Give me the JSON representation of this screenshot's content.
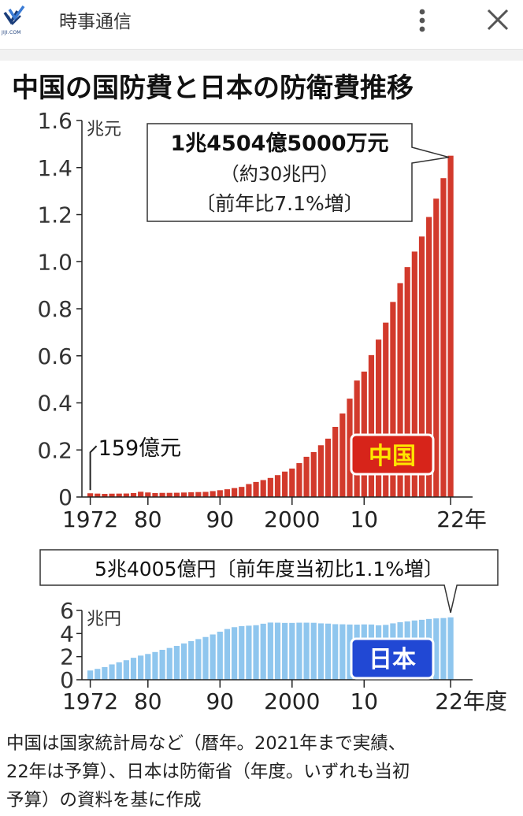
{
  "app_bar": {
    "logo_text": "JIJI.COM",
    "title": "時事通信"
  },
  "icons": {
    "logo": "jiji-logo-icon",
    "more": "more-vertical-icon",
    "close": "close-icon"
  },
  "colors": {
    "china_bar": "#d23a2c",
    "japan_bar": "#8fc6ee",
    "china_label_bg": "#d7241a",
    "china_label_text": "#ffe600",
    "japan_label_bg": "#2148d4"
  },
  "footnote": [
    "中国は国家統計局など（暦年。2021年まで実績、",
    "22年は予算）、日本は防衛省（年度。いずれも当初",
    "予算）の資料を基に作成"
  ],
  "chart_data": [
    {
      "type": "bar",
      "title": "中国の国防費と日本の防衛費推移",
      "unit_label": "兆元",
      "series_label": "中国",
      "x": [
        1972,
        1973,
        1974,
        1975,
        1976,
        1977,
        1978,
        1979,
        1980,
        1981,
        1982,
        1983,
        1984,
        1985,
        1986,
        1987,
        1988,
        1989,
        1990,
        1991,
        1992,
        1993,
        1994,
        1995,
        1996,
        1997,
        1998,
        1999,
        2000,
        2001,
        2002,
        2003,
        2004,
        2005,
        2006,
        2007,
        2008,
        2009,
        2010,
        2011,
        2012,
        2013,
        2014,
        2015,
        2016,
        2017,
        2018,
        2019,
        2020,
        2021,
        2022
      ],
      "values": [
        0.0159,
        0.0145,
        0.0133,
        0.0142,
        0.0145,
        0.0149,
        0.0168,
        0.0223,
        0.0193,
        0.0168,
        0.0176,
        0.0177,
        0.0181,
        0.0191,
        0.0201,
        0.021,
        0.0218,
        0.0251,
        0.029,
        0.033,
        0.038,
        0.043,
        0.055,
        0.064,
        0.072,
        0.081,
        0.093,
        0.108,
        0.121,
        0.144,
        0.171,
        0.191,
        0.22,
        0.248,
        0.298,
        0.355,
        0.418,
        0.495,
        0.533,
        0.603,
        0.669,
        0.741,
        0.829,
        0.909,
        0.977,
        1.043,
        1.107,
        1.19,
        1.268,
        1.355,
        1.45045
      ],
      "x_tick_labels": [
        "1972",
        "80",
        "90",
        "2000",
        "10",
        "22年"
      ],
      "x_tick_positions": [
        1972,
        1980,
        1990,
        2000,
        2010,
        2022
      ],
      "y_ticks": [
        "0",
        "0.2",
        "0.4",
        "0.6",
        "0.8",
        "1.0",
        "1.2",
        "1.4",
        "1.6"
      ],
      "ylim": [
        0,
        1.6
      ],
      "annotations": {
        "first_value": "159億元",
        "last_value_line1": "1兆4504億5000万元",
        "last_value_line2": "（約30兆円）",
        "last_value_line3": "〔前年比7.1%増〕"
      }
    },
    {
      "type": "bar",
      "unit_label": "兆円",
      "series_label": "日本",
      "x": [
        1972,
        1973,
        1974,
        1975,
        1976,
        1977,
        1978,
        1979,
        1980,
        1981,
        1982,
        1983,
        1984,
        1985,
        1986,
        1987,
        1988,
        1989,
        1990,
        1991,
        1992,
        1993,
        1994,
        1995,
        1996,
        1997,
        1998,
        1999,
        2000,
        2001,
        2002,
        2003,
        2004,
        2005,
        2006,
        2007,
        2008,
        2009,
        2010,
        2011,
        2012,
        2013,
        2014,
        2015,
        2016,
        2017,
        2018,
        2019,
        2020,
        2021,
        2022
      ],
      "values": [
        0.8,
        0.94,
        1.09,
        1.33,
        1.51,
        1.69,
        1.9,
        2.09,
        2.23,
        2.4,
        2.59,
        2.75,
        2.93,
        3.14,
        3.34,
        3.52,
        3.7,
        3.92,
        4.16,
        4.39,
        4.55,
        4.64,
        4.68,
        4.72,
        4.85,
        4.95,
        4.94,
        4.92,
        4.92,
        4.94,
        4.94,
        4.93,
        4.88,
        4.86,
        4.81,
        4.8,
        4.78,
        4.77,
        4.79,
        4.78,
        4.71,
        4.75,
        4.88,
        4.98,
        5.05,
        5.13,
        5.19,
        5.26,
        5.31,
        5.34,
        5.4005
      ],
      "x_tick_labels": [
        "1972",
        "80",
        "90",
        "2000",
        "10",
        "22年度"
      ],
      "x_tick_positions": [
        1972,
        1980,
        1990,
        2000,
        2010,
        2022
      ],
      "y_ticks": [
        "0",
        "2",
        "4",
        "6"
      ],
      "ylim": [
        0,
        6
      ],
      "annotations": {
        "last_value": "5兆4005億円〔前年度当初比1.1%増〕"
      }
    }
  ]
}
